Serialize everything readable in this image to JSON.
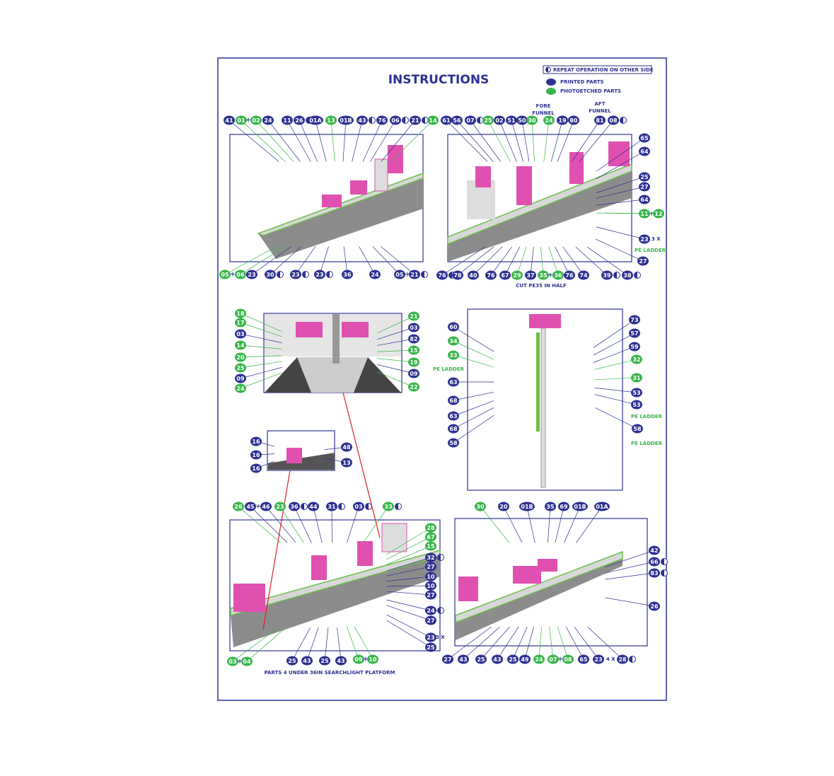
{
  "header": {
    "title": "INSTRUCTIONS",
    "legend": {
      "repeat": "REPEAT OPERATION ON OTHER SIDE",
      "printed": "PRINTED PARTS",
      "photoetched": "PHOTOETCHED PARTS"
    }
  },
  "panels": [
    {
      "callouts": [
        "41",
        "01",
        "+",
        "02",
        "24",
        "11",
        "26",
        "01A",
        "13",
        "01B",
        "43",
        "76",
        "06",
        "21",
        "14",
        "05",
        "+",
        "06",
        "23",
        "30",
        "23",
        "23",
        "36",
        "24",
        "05",
        "+",
        "21"
      ],
      "notes": []
    },
    {
      "callouts": [
        "61",
        "56",
        "07",
        "25",
        "02",
        "51",
        "50",
        "30",
        "24",
        "19",
        "80",
        "81",
        "08",
        "65",
        "64",
        "25",
        "27",
        "64",
        "11",
        "+",
        "12",
        "23",
        "27",
        "76",
        "78",
        "40",
        "76",
        "67",
        "29",
        "37",
        "35",
        "+",
        "36",
        "76",
        "74",
        "39",
        "38"
      ],
      "notes": [
        "FORE",
        "FUNNEL",
        "AFT",
        "FUNNEL",
        "3 X",
        "PE LADDER",
        "CUT PE35 IN HALF"
      ]
    },
    {
      "callouts": [
        "18",
        "17",
        "03",
        "14",
        "20",
        "25",
        "09",
        "24",
        "21",
        "03",
        "82",
        "15",
        "19",
        "09",
        "22"
      ],
      "notes": []
    },
    {
      "callouts": [
        "60",
        "34",
        "33",
        "63",
        "68",
        "63",
        "68",
        "58",
        "73",
        "57",
        "59",
        "32",
        "31",
        "53",
        "53",
        "58"
      ],
      "notes": [
        "PE LADDER",
        "PE LADDER",
        "PE LADDER"
      ]
    },
    {
      "callouts": [
        "16",
        "16",
        "16",
        "48",
        "13"
      ],
      "notes": []
    },
    {
      "callouts": [
        "26",
        "45",
        "+",
        "46",
        "23",
        "36",
        "44",
        "31",
        "03",
        "33",
        "28",
        "67",
        "15",
        "32",
        "27",
        "10",
        "10",
        "27",
        "24",
        "27",
        "23",
        "25",
        "25",
        "43",
        "25",
        "43",
        "09",
        "+",
        "10",
        "03",
        "+",
        "04"
      ],
      "notes": [
        "3 X",
        "PARTS 4 UNDER 36IN SEARCHLIGHT PLATFORM"
      ]
    },
    {
      "callouts": [
        "30",
        "20",
        "01B",
        "35",
        "69",
        "01B",
        "01A",
        "42",
        "66",
        "83",
        "26",
        "27",
        "43",
        "25",
        "43",
        "25",
        "49",
        "24",
        "07",
        "+",
        "08",
        "65",
        "23",
        "28"
      ],
      "notes": [
        "4 X"
      ]
    }
  ]
}
